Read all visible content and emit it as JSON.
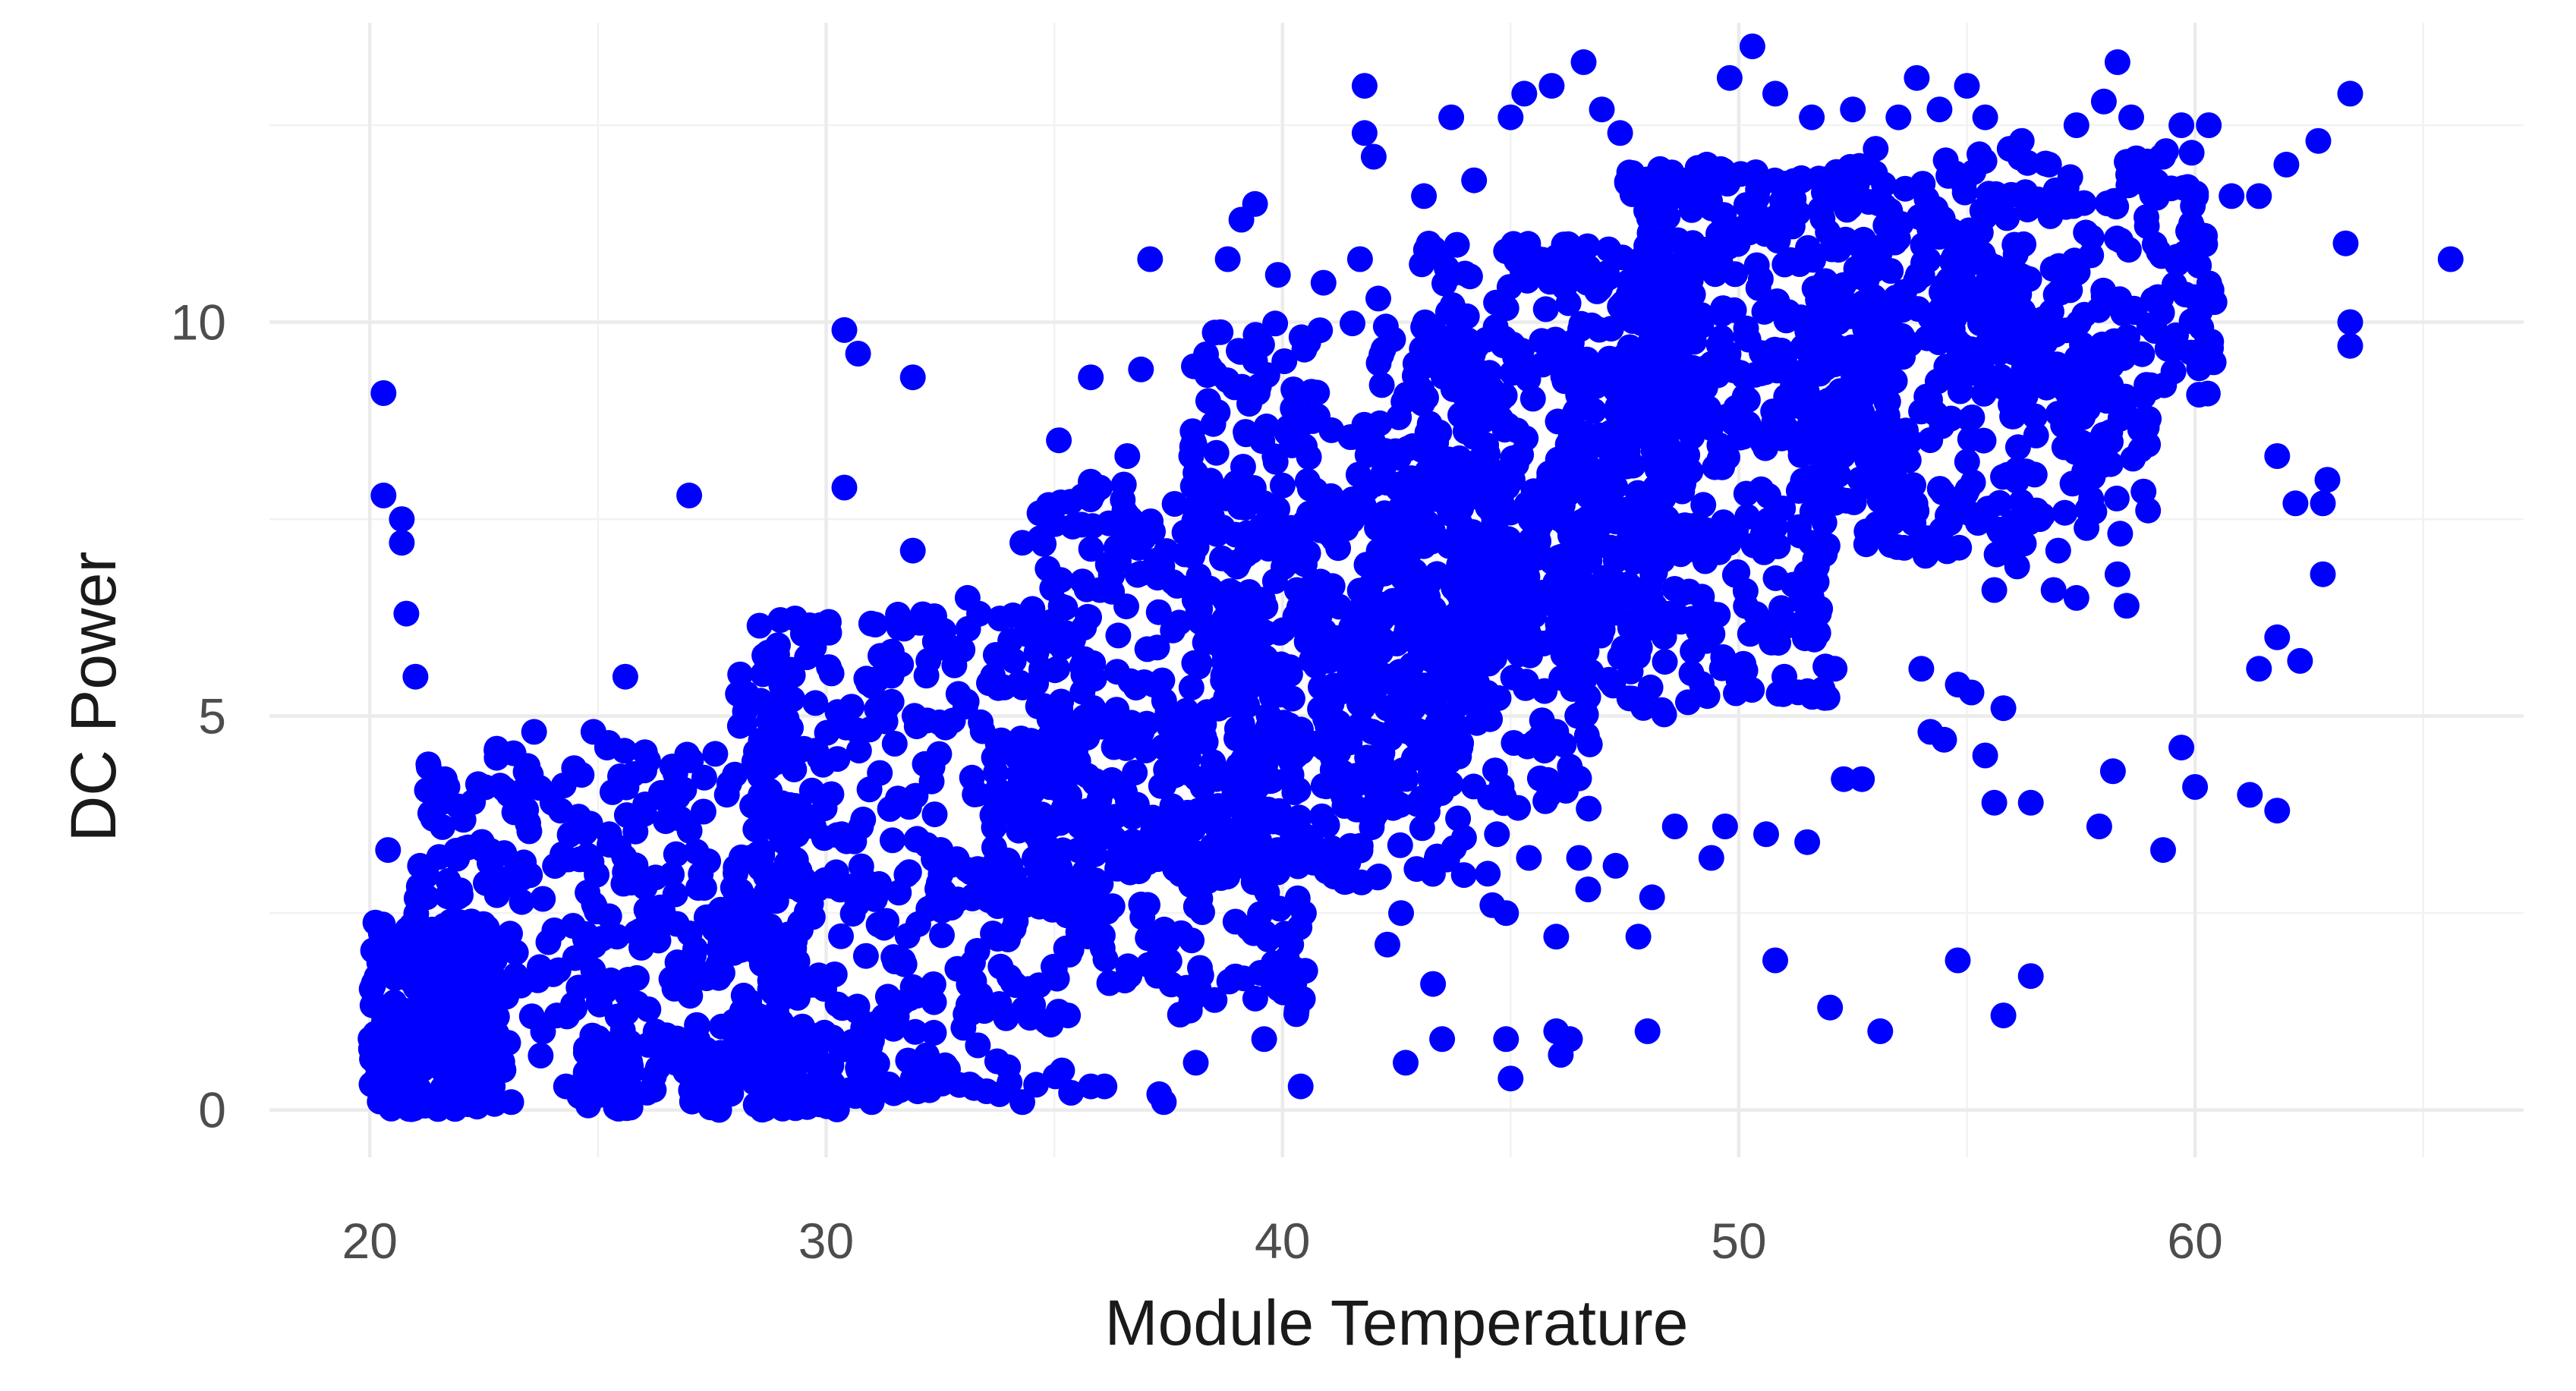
{
  "chart_data": {
    "type": "scatter",
    "title": "",
    "xlabel": "Module Temperature",
    "ylabel": "DC Power",
    "xlim": [
      17.8,
      67.2
    ],
    "ylim": [
      -0.6,
      13.8
    ],
    "x_ticks": [
      20,
      30,
      40,
      50,
      60
    ],
    "y_ticks": [
      0,
      5,
      10
    ],
    "grid": true,
    "point_color": "#0000ff",
    "series": [
      {
        "points": [
          [
            20.3,
            9.1
          ],
          [
            20.3,
            7.8
          ],
          [
            20.7,
            7.5
          ],
          [
            20.7,
            7.2
          ],
          [
            20.8,
            6.3
          ],
          [
            21.0,
            5.5
          ],
          [
            20.4,
            3.3
          ],
          [
            21.5,
            4.0
          ],
          [
            21.7,
            4.1
          ],
          [
            21.1,
            3.1
          ],
          [
            23.6,
            4.8
          ],
          [
            24.0,
            3.9
          ],
          [
            24.9,
            4.8
          ],
          [
            25.6,
            5.5
          ],
          [
            25.2,
            4.6
          ],
          [
            27.0,
            7.8
          ],
          [
            30.4,
            9.9
          ],
          [
            30.7,
            9.6
          ],
          [
            31.9,
            9.3
          ],
          [
            30.4,
            7.9
          ],
          [
            31.9,
            7.1
          ],
          [
            33.1,
            6.5
          ],
          [
            34.3,
            7.2
          ],
          [
            36.0,
            7.9
          ],
          [
            36.6,
            8.3
          ],
          [
            35.8,
            9.3
          ],
          [
            37.1,
            10.8
          ],
          [
            36.9,
            9.4
          ],
          [
            35.1,
            8.5
          ],
          [
            36.0,
            6.6
          ],
          [
            38.0,
            8.3
          ],
          [
            38.8,
            10.8
          ],
          [
            39.1,
            11.3
          ],
          [
            39.4,
            11.5
          ],
          [
            39.9,
            10.6
          ],
          [
            40.9,
            10.5
          ],
          [
            41.8,
            13.0
          ],
          [
            41.8,
            12.4
          ],
          [
            42.0,
            12.1
          ],
          [
            41.7,
            10.8
          ],
          [
            42.1,
            10.3
          ],
          [
            43.1,
            11.6
          ],
          [
            43.7,
            12.6
          ],
          [
            44.2,
            11.8
          ],
          [
            44.9,
            10.9
          ],
          [
            45.0,
            12.6
          ],
          [
            45.3,
            12.9
          ],
          [
            45.9,
            13.0
          ],
          [
            46.6,
            13.3
          ],
          [
            47.0,
            12.7
          ],
          [
            47.4,
            12.4
          ],
          [
            47.6,
            11.9
          ],
          [
            48.3,
            11.6
          ],
          [
            49.3,
            12.0
          ],
          [
            49.8,
            13.1
          ],
          [
            50.3,
            13.5
          ],
          [
            50.8,
            12.9
          ],
          [
            51.1,
            11.3
          ],
          [
            51.6,
            12.6
          ],
          [
            52.5,
            12.7
          ],
          [
            53.0,
            12.2
          ],
          [
            53.5,
            12.6
          ],
          [
            53.9,
            13.1
          ],
          [
            54.4,
            12.7
          ],
          [
            55.0,
            13.0
          ],
          [
            55.4,
            12.6
          ],
          [
            56.2,
            12.3
          ],
          [
            56.8,
            12.0
          ],
          [
            57.4,
            12.5
          ],
          [
            58.0,
            12.8
          ],
          [
            58.3,
            13.3
          ],
          [
            58.6,
            12.6
          ],
          [
            59.7,
            12.5
          ],
          [
            60.3,
            12.5
          ],
          [
            59.3,
            12.1
          ],
          [
            60.8,
            11.6
          ],
          [
            61.4,
            11.6
          ],
          [
            62.0,
            12.0
          ],
          [
            62.7,
            12.3
          ],
          [
            63.4,
            12.9
          ],
          [
            63.3,
            11.0
          ],
          [
            63.4,
            10.0
          ],
          [
            63.4,
            9.7
          ],
          [
            65.6,
            10.8
          ],
          [
            61.8,
            8.3
          ],
          [
            62.2,
            7.7
          ],
          [
            62.8,
            7.7
          ],
          [
            62.9,
            8.0
          ],
          [
            62.8,
            6.8
          ],
          [
            61.8,
            6.0
          ],
          [
            62.3,
            5.7
          ],
          [
            61.4,
            5.6
          ],
          [
            61.2,
            4.0
          ],
          [
            61.8,
            3.8
          ],
          [
            59.7,
            4.6
          ],
          [
            60.0,
            4.1
          ],
          [
            59.3,
            3.3
          ],
          [
            58.2,
            4.3
          ],
          [
            57.9,
            3.6
          ],
          [
            58.3,
            6.8
          ],
          [
            58.5,
            6.4
          ],
          [
            57.4,
            6.5
          ],
          [
            56.9,
            6.6
          ],
          [
            57.0,
            7.1
          ],
          [
            56.6,
            7.5
          ],
          [
            56.1,
            6.9
          ],
          [
            55.6,
            6.6
          ],
          [
            55.8,
            5.1
          ],
          [
            55.4,
            4.5
          ],
          [
            55.6,
            3.9
          ],
          [
            56.4,
            3.9
          ],
          [
            56.4,
            1.7
          ],
          [
            55.8,
            1.2
          ],
          [
            54.8,
            1.9
          ],
          [
            53.1,
            1.0
          ],
          [
            52.0,
            1.3
          ],
          [
            50.8,
            1.9
          ],
          [
            49.4,
            3.2
          ],
          [
            48.0,
            1.0
          ],
          [
            47.8,
            2.2
          ],
          [
            47.3,
            3.1
          ],
          [
            46.5,
            3.2
          ],
          [
            45.4,
            3.2
          ],
          [
            44.7,
            3.5
          ],
          [
            44.9,
            2.5
          ],
          [
            44.6,
            2.6
          ],
          [
            43.9,
            4.6
          ],
          [
            44.5,
            3.0
          ],
          [
            42.6,
            2.5
          ],
          [
            42.3,
            2.1
          ],
          [
            43.3,
            1.6
          ],
          [
            43.5,
            0.9
          ],
          [
            42.7,
            0.6
          ],
          [
            44.9,
            0.9
          ],
          [
            45.0,
            0.4
          ],
          [
            46.0,
            1.0
          ],
          [
            46.3,
            0.9
          ],
          [
            46.1,
            0.7
          ],
          [
            46.0,
            2.2
          ],
          [
            46.7,
            2.8
          ],
          [
            48.1,
            2.7
          ],
          [
            48.6,
            3.6
          ],
          [
            49.7,
            3.6
          ],
          [
            50.6,
            3.5
          ],
          [
            51.5,
            3.4
          ],
          [
            52.3,
            4.2
          ],
          [
            52.7,
            4.2
          ],
          [
            54.2,
            4.8
          ],
          [
            54.5,
            4.7
          ],
          [
            54.0,
            5.6
          ],
          [
            54.8,
            5.4
          ],
          [
            55.1,
            5.3
          ],
          [
            52.1,
            5.6
          ],
          [
            51.0,
            5.5
          ],
          [
            50.5,
            6.2
          ],
          [
            50.8,
            7.4
          ],
          [
            40.4,
            0.3
          ],
          [
            39.6,
            0.9
          ],
          [
            39.8,
            1.6
          ],
          [
            38.1,
            0.6
          ],
          [
            37.3,
            0.2
          ],
          [
            37.4,
            0.1
          ],
          [
            36.1,
            0.3
          ],
          [
            35.8,
            0.3
          ],
          [
            35.3,
            1.2
          ],
          [
            33.8,
            0.2
          ],
          [
            34.3,
            0.1
          ],
          [
            32.3,
            0.5
          ],
          [
            31.9,
            0.4
          ],
          [
            31.0,
            0.1
          ],
          [
            29.2,
            0.4
          ],
          [
            28.7,
            0.3
          ],
          [
            23.1,
            0.1
          ],
          [
            24.3,
            0.3
          ],
          [
            24.9,
            0.2
          ],
          [
            26.7,
            0.6
          ],
          [
            25.4,
            0.3
          ],
          [
            24.1,
            1.2
          ],
          [
            23.2,
            2.0
          ],
          [
            22.5,
            1.4
          ]
        ],
        "clusters": [
          {
            "x": [
              20.0,
              22.8
            ],
            "y": [
              0.0,
              2.4
            ],
            "count": 260
          },
          {
            "x": [
              21.0,
              29.5
            ],
            "y": [
              0.5,
              4.7
            ],
            "count": 330
          },
          {
            "x": [
              24.5,
              31.0
            ],
            "y": [
              0.0,
              1.0
            ],
            "count": 140
          },
          {
            "x": [
              27.0,
              35.5
            ],
            "y": [
              0.2,
              3.2
            ],
            "count": 220
          },
          {
            "x": [
              28.0,
              36.0
            ],
            "y": [
              2.5,
              6.3
            ],
            "count": 260
          },
          {
            "x": [
              33.5,
              40.5
            ],
            "y": [
              1.2,
              5.0
            ],
            "count": 200
          },
          {
            "x": [
              34.5,
              41.5
            ],
            "y": [
              3.0,
              8.0
            ],
            "count": 260
          },
          {
            "x": [
              38.0,
              44.0
            ],
            "y": [
              2.8,
              6.0
            ],
            "count": 160
          },
          {
            "x": [
              38.0,
              45.0
            ],
            "y": [
              5.5,
              10.0
            ],
            "count": 300
          },
          {
            "x": [
              41.5,
              47.0
            ],
            "y": [
              3.8,
              8.5
            ],
            "count": 230
          },
          {
            "x": [
              43.0,
              49.0
            ],
            "y": [
              6.0,
              11.0
            ],
            "count": 330
          },
          {
            "x": [
              46.0,
              52.0
            ],
            "y": [
              5.0,
              9.5
            ],
            "count": 260
          },
          {
            "x": [
              47.5,
              53.5
            ],
            "y": [
              8.5,
              12.0
            ],
            "count": 290
          },
          {
            "x": [
              51.5,
              56.5
            ],
            "y": [
              7.0,
              11.8
            ],
            "count": 230
          },
          {
            "x": [
              54.0,
              60.5
            ],
            "y": [
              9.0,
              12.2
            ],
            "count": 210
          },
          {
            "x": [
              56.0,
              59.0
            ],
            "y": [
              7.2,
              10.0
            ],
            "count": 80
          }
        ]
      }
    ]
  }
}
